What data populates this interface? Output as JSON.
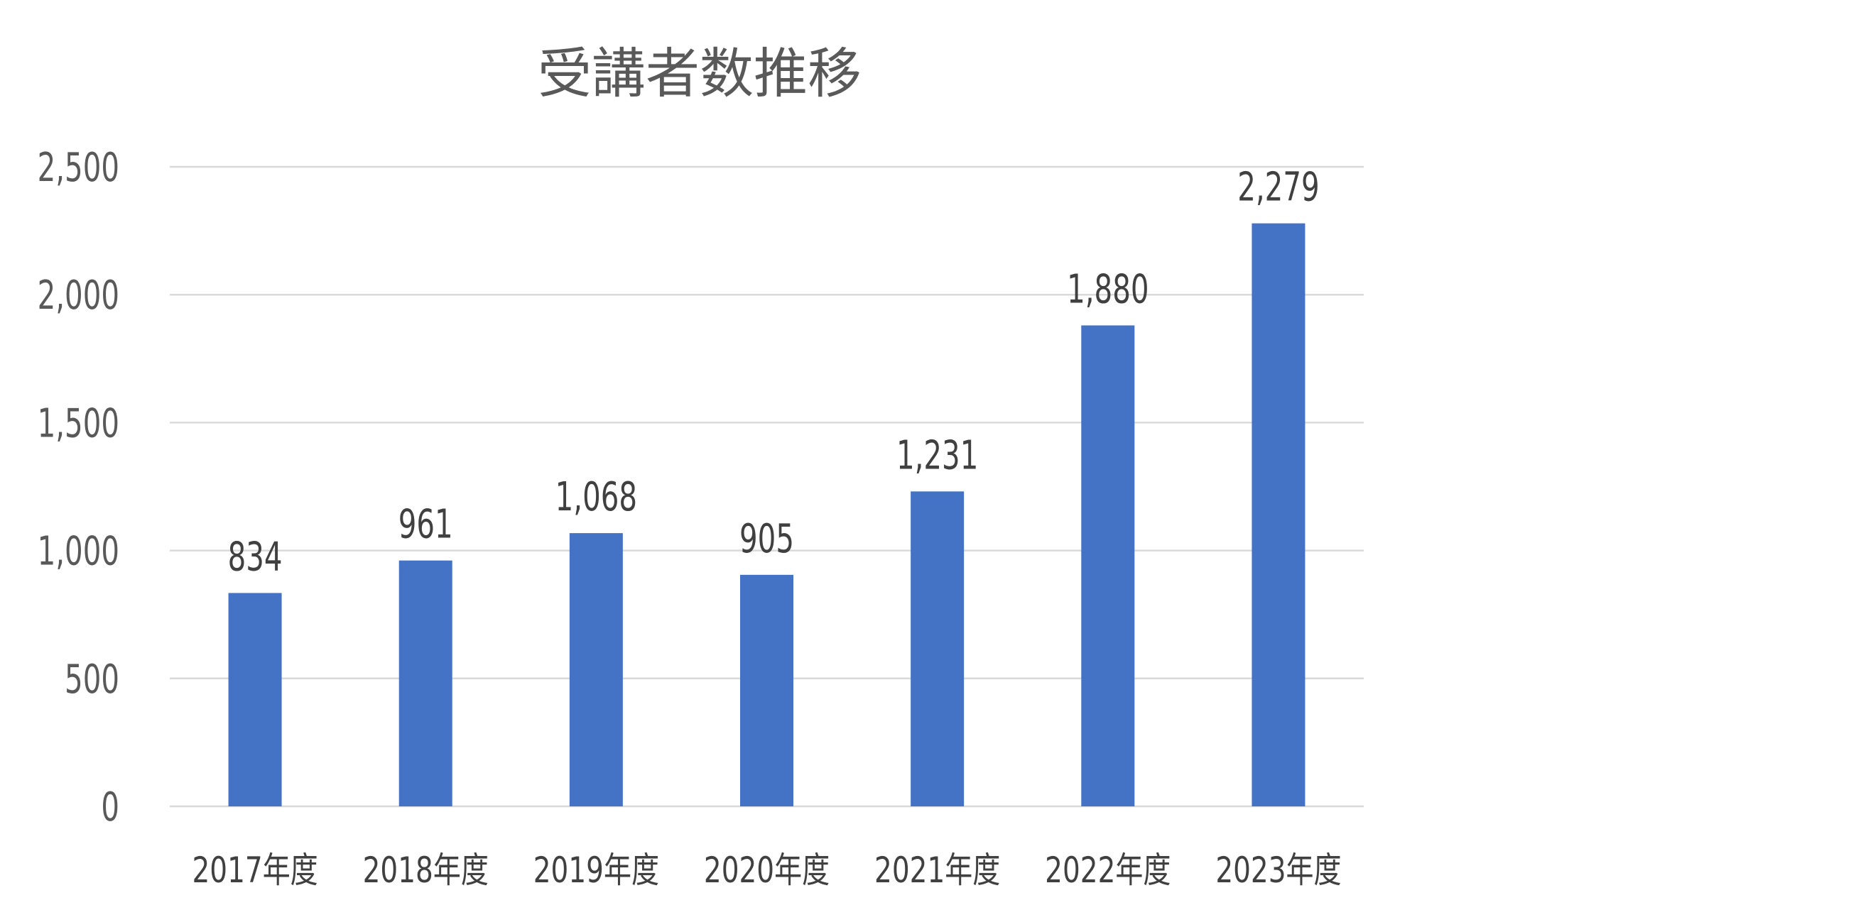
{
  "chart_data": {
    "type": "bar",
    "title": "受講者数推移",
    "categories": [
      "2017年度",
      "2018年度",
      "2019年度",
      "2020年度",
      "2021年度",
      "2022年度",
      "2023年度"
    ],
    "values": [
      834,
      961,
      1068,
      905,
      1231,
      1880,
      2279
    ],
    "data_labels": [
      "834",
      "961",
      "1,068",
      "905",
      "1,231",
      "1,880",
      "2,279"
    ],
    "ylim": [
      0,
      2500
    ],
    "yticks": [
      0,
      500,
      1000,
      1500,
      2000,
      2500
    ],
    "ytick_labels": [
      "0",
      "500",
      "1,000",
      "1,500",
      "2,000",
      "2,500"
    ],
    "grid": true,
    "legend": "none",
    "colors": {
      "bar": "#4472C4",
      "grid": "#D9D9D9",
      "text": "#404040"
    }
  }
}
